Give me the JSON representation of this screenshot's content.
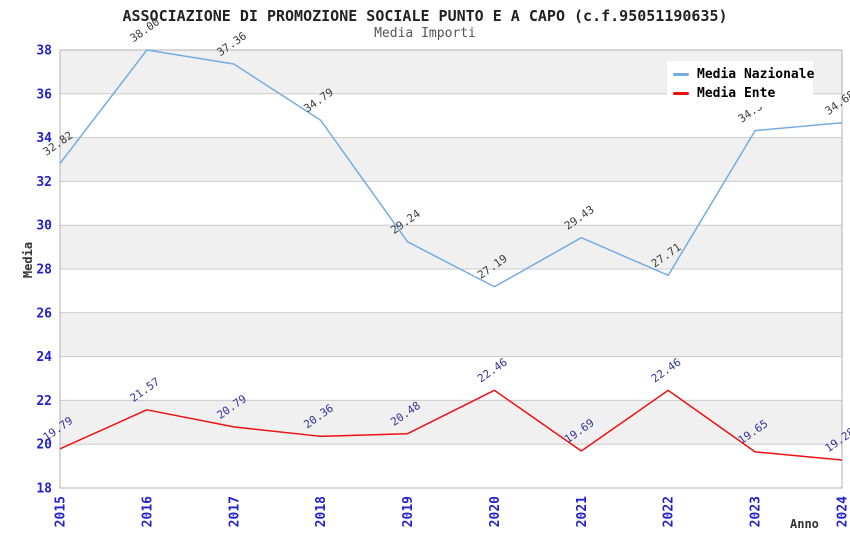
{
  "header": {
    "title": "ASSOCIAZIONE DI PROMOZIONE SOCIALE PUNTO E A CAPO (c.f.95051190635)",
    "subtitle": "Media Importi"
  },
  "chart_data": {
    "type": "line",
    "title": "ASSOCIAZIONE DI PROMOZIONE SOCIALE PUNTO E A CAPO (c.f.95051190635)",
    "subtitle": "Media Importi",
    "xlabel": "Anno",
    "ylabel": "Media",
    "categories": [
      "2015",
      "2016",
      "2017",
      "2018",
      "2019",
      "2020",
      "2021",
      "2022",
      "2023",
      "2024"
    ],
    "ylim": [
      18,
      38
    ],
    "ytick_step": 2,
    "grid": true,
    "band_fill": true,
    "legend_position": "top-right",
    "series": [
      {
        "name": "Media Nazionale",
        "color": "#76ACDF",
        "label_color": "#3c3c3c",
        "values": [
          32.82,
          38.0,
          37.36,
          34.79,
          29.24,
          27.19,
          29.43,
          27.71,
          34.32,
          34.68
        ]
      },
      {
        "name": "Media Ente",
        "color": "#EE1111",
        "label_color": "#333399",
        "values": [
          19.79,
          21.57,
          20.79,
          20.36,
          20.48,
          22.46,
          19.69,
          22.46,
          19.65,
          19.28
        ]
      }
    ]
  },
  "style": {
    "band_color": "#f0f0f0",
    "grid_color": "#cccccc",
    "border_color": "#b3b3b3",
    "tick_label_color": "#2222cc"
  }
}
